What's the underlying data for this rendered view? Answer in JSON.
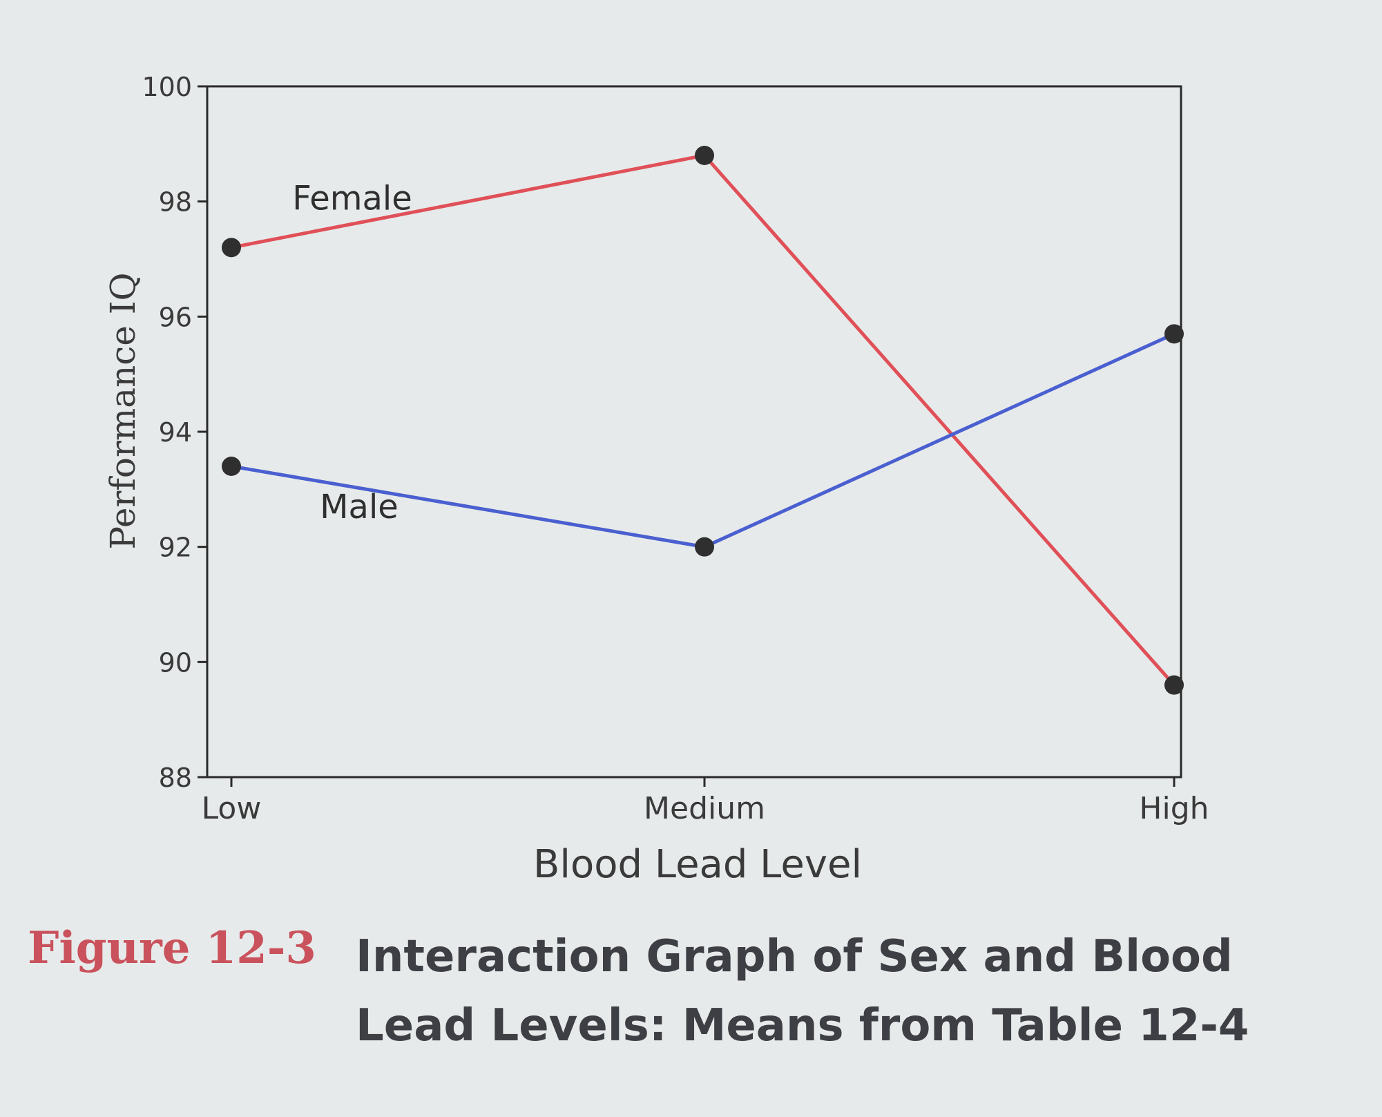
{
  "chart_data": {
    "type": "line",
    "categories": [
      "Low",
      "Medium",
      "High"
    ],
    "xlabel": "Blood Lead Level",
    "ylabel": "Performance IQ",
    "ylim": [
      88,
      100
    ],
    "yticks": [
      88,
      90,
      92,
      94,
      96,
      98,
      100
    ],
    "grid": false,
    "legend": "inline labels next to lines",
    "series": [
      {
        "name": "Female",
        "color": "#e05058",
        "values": [
          97.2,
          98.8,
          89.6
        ]
      },
      {
        "name": "Male",
        "color": "#4a5fd0",
        "values": [
          93.4,
          92.0,
          95.7
        ]
      }
    ]
  },
  "caption": {
    "label": "Figure 12-3",
    "text": "Interaction Graph of Sex and Blood Lead Levels: Means from Table 12-4"
  }
}
